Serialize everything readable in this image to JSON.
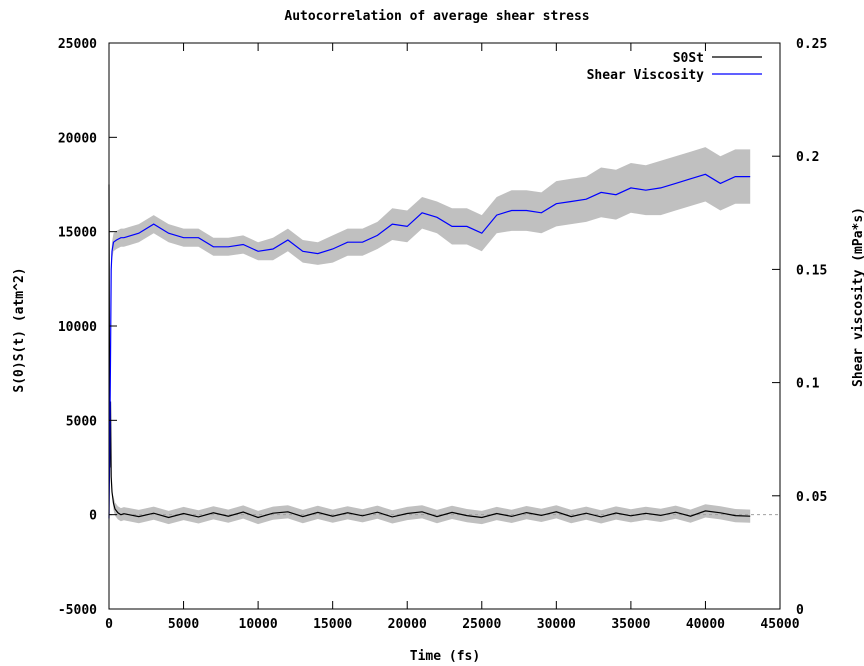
{
  "chart_data": {
    "type": "line",
    "title": "Autocorrelation of average shear stress",
    "xlabel": "Time (fs)",
    "ylabel": "S(0)S(t) (atm^2)",
    "y2label": "Shear viscosity (mPa*s)",
    "xlim": [
      0,
      45000
    ],
    "ylim": [
      -5000,
      25000
    ],
    "y2lim": [
      0,
      0.25
    ],
    "xticks": [
      "0",
      "5000",
      "10000",
      "15000",
      "20000",
      "25000",
      "30000",
      "35000",
      "40000",
      "45000"
    ],
    "yticks": [
      "-5000",
      "0",
      "5000",
      "10000",
      "15000",
      "20000",
      "25000"
    ],
    "y2ticks": [
      "0",
      "0.05",
      "0.1",
      "0.15",
      "0.2",
      "0.25"
    ],
    "legend_position": "top-right",
    "zero_line": "dashed",
    "colors": {
      "S0St": "#000000",
      "Shear Viscosity": "#0000ff",
      "error_band": "#c0c0c0"
    },
    "series": [
      {
        "name": "S0St",
        "axis": "left",
        "x": [
          0,
          50,
          100,
          150,
          200,
          300,
          400,
          600,
          800,
          1000,
          2000,
          3000,
          4000,
          5000,
          6000,
          7000,
          8000,
          9000,
          10000,
          11000,
          12000,
          13000,
          14000,
          15000,
          16000,
          17000,
          18000,
          19000,
          20000,
          21000,
          22000,
          23000,
          24000,
          25000,
          26000,
          27000,
          28000,
          29000,
          30000,
          31000,
          32000,
          33000,
          34000,
          35000,
          36000,
          37000,
          38000,
          39000,
          40000,
          41000,
          42000,
          43000
        ],
        "y": [
          17500,
          2500,
          6000,
          2000,
          1200,
          600,
          300,
          100,
          0,
          50,
          -100,
          80,
          -150,
          60,
          -120,
          100,
          -80,
          140,
          -150,
          80,
          150,
          -100,
          120,
          -80,
          100,
          -60,
          130,
          -120,
          60,
          150,
          -100,
          120,
          -50,
          -150,
          60,
          -90,
          110,
          -40,
          150,
          -100,
          80,
          -120,
          90,
          -60,
          70,
          -40,
          130,
          -80,
          200,
          100,
          -50,
          -80
        ],
        "band": 350
      },
      {
        "name": "Shear Viscosity",
        "axis": "right",
        "x": [
          0,
          50,
          100,
          150,
          200,
          300,
          500,
          800,
          1000,
          2000,
          3000,
          4000,
          5000,
          6000,
          7000,
          8000,
          9000,
          10000,
          11000,
          12000,
          13000,
          14000,
          15000,
          16000,
          17000,
          18000,
          19000,
          20000,
          21000,
          22000,
          23000,
          24000,
          25000,
          26000,
          27000,
          28000,
          29000,
          30000,
          31000,
          32000,
          33000,
          34000,
          35000,
          36000,
          37000,
          38000,
          39000,
          40000,
          41000,
          42000,
          43000
        ],
        "y": [
          0.04,
          0.07,
          0.11,
          0.15,
          0.158,
          0.162,
          0.163,
          0.164,
          0.164,
          0.166,
          0.17,
          0.166,
          0.164,
          0.164,
          0.16,
          0.16,
          0.161,
          0.158,
          0.159,
          0.163,
          0.158,
          0.157,
          0.159,
          0.162,
          0.162,
          0.165,
          0.17,
          0.169,
          0.175,
          0.173,
          0.169,
          0.169,
          0.166,
          0.174,
          0.176,
          0.176,
          0.175,
          0.179,
          0.18,
          0.181,
          0.184,
          0.183,
          0.186,
          0.185,
          0.186,
          0.188,
          0.19,
          0.192,
          0.188,
          0.191,
          0.191
        ],
        "band_y": [
          0.004,
          0.004,
          0.004,
          0.004,
          0.004,
          0.004,
          0.004,
          0.004,
          0.004,
          0.004,
          0.004,
          0.004,
          0.004,
          0.004,
          0.004,
          0.004,
          0.004,
          0.004,
          0.005,
          0.005,
          0.005,
          0.005,
          0.006,
          0.006,
          0.006,
          0.006,
          0.007,
          0.007,
          0.007,
          0.007,
          0.008,
          0.008,
          0.008,
          0.008,
          0.009,
          0.009,
          0.009,
          0.01,
          0.01,
          0.01,
          0.011,
          0.011,
          0.011,
          0.011,
          0.012,
          0.012,
          0.012,
          0.012,
          0.012,
          0.012,
          0.012
        ]
      }
    ]
  }
}
